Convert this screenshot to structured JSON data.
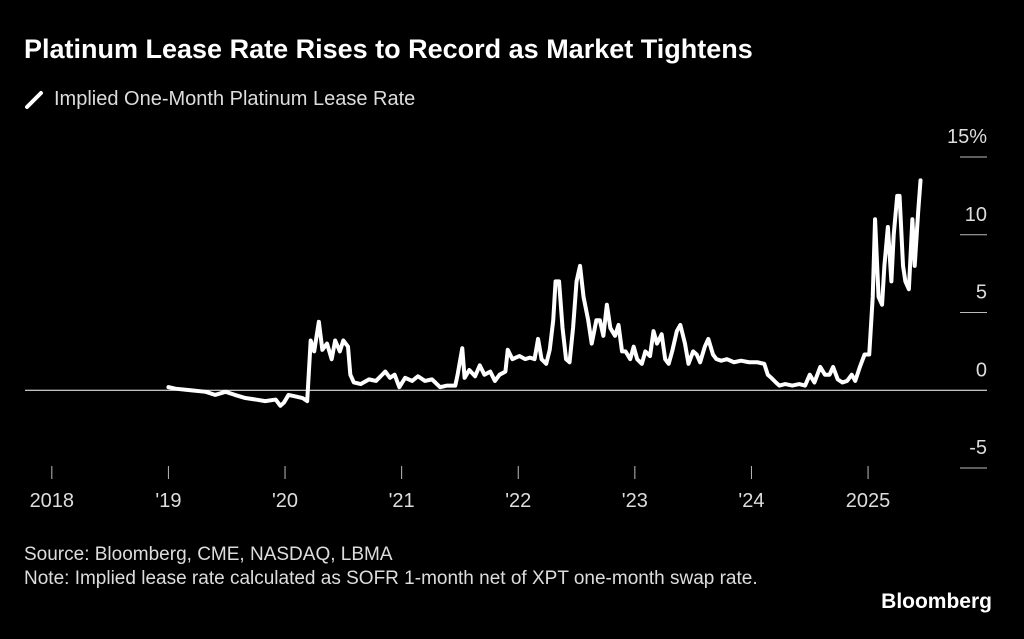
{
  "chart_data": {
    "type": "line",
    "title": "Platinum Lease Rate Rises to Record as Market Tightens",
    "source": "Source: Bloomberg, CME, NASDAQ, LBMA",
    "note": "Note: Implied lease rate calculated as SOFR 1-month net of XPT one-month swap rate.",
    "source_logo": "Bloomberg",
    "xlim": [
      2017.77,
      2026.02
    ],
    "xticks": [
      2018,
      {
        "value": 2019,
        "label": "'19"
      },
      {
        "value": 2020,
        "label": "'20"
      },
      {
        "value": 2021,
        "label": "'21"
      },
      {
        "value": 2022,
        "label": "'22"
      },
      {
        "value": 2023,
        "label": "'23"
      },
      {
        "value": 2024,
        "label": "'24"
      },
      2025
    ],
    "ylim": [
      -5,
      15
    ],
    "yticks": [
      -5,
      0,
      5,
      10,
      {
        "value": 15,
        "label": "15%"
      }
    ],
    "x": [
      2019.0,
      2019.06,
      2019.19,
      2019.32,
      2019.4,
      2019.49,
      2019.57,
      2019.66,
      2019.75,
      2019.83,
      2019.92,
      2019.96,
      2019.99,
      2020.03,
      2020.09,
      2020.15,
      2020.19,
      2020.22,
      2020.25,
      2020.29,
      2020.32,
      2020.36,
      2020.4,
      2020.43,
      2020.47,
      2020.5,
      2020.54,
      2020.56,
      2020.59,
      2020.65,
      2020.72,
      2020.78,
      2020.82,
      2020.86,
      2020.9,
      2020.94,
      2020.98,
      2021.03,
      2021.09,
      2021.14,
      2021.2,
      2021.26,
      2021.33,
      2021.39,
      2021.46,
      2021.48,
      2021.52,
      2021.54,
      2021.58,
      2021.63,
      2021.67,
      2021.71,
      2021.76,
      2021.8,
      2021.84,
      2021.89,
      2021.91,
      2021.95,
      2021.98,
      2022.01,
      2022.06,
      2022.1,
      2022.14,
      2022.17,
      2022.2,
      2022.24,
      2022.27,
      2022.3,
      2022.32,
      2022.35,
      2022.38,
      2022.41,
      2022.44,
      2022.47,
      2022.5,
      2022.53,
      2022.56,
      2022.6,
      2022.63,
      2022.67,
      2022.7,
      2022.73,
      2022.76,
      2022.79,
      2022.83,
      2022.86,
      2022.89,
      2022.92,
      2022.96,
      2022.99,
      2023.02,
      2023.06,
      2023.09,
      2023.13,
      2023.16,
      2023.19,
      2023.23,
      2023.26,
      2023.29,
      2023.32,
      2023.36,
      2023.39,
      2023.43,
      2023.46,
      2023.5,
      2023.53,
      2023.56,
      2023.6,
      2023.63,
      2023.67,
      2023.7,
      2023.74,
      2023.79,
      2023.85,
      2023.91,
      2023.98,
      2024.05,
      2024.11,
      2024.14,
      2024.17,
      2024.21,
      2024.24,
      2024.29,
      2024.35,
      2024.41,
      2024.46,
      2024.5,
      2024.54,
      2024.59,
      2024.63,
      2024.67,
      2024.7,
      2024.74,
      2024.78,
      2024.82,
      2024.86,
      2024.89,
      2024.93,
      2024.97,
      2025.01,
      2025.04,
      2025.06,
      2025.09,
      2025.12,
      2025.14,
      2025.17,
      2025.2,
      2025.22,
      2025.25,
      2025.27,
      2025.3,
      2025.32,
      2025.35,
      2025.38,
      2025.4,
      2025.43,
      2025.45
    ],
    "series": [
      {
        "name": "Implied One-Month Platinum Lease Rate",
        "color": "#ffffff",
        "values": [
          0.2,
          0.1,
          0.0,
          -0.1,
          -0.3,
          -0.1,
          -0.3,
          -0.5,
          -0.6,
          -0.7,
          -0.6,
          -1.0,
          -0.8,
          -0.3,
          -0.4,
          -0.5,
          -0.7,
          3.2,
          2.5,
          4.4,
          2.6,
          3.0,
          2.0,
          3.2,
          2.5,
          3.2,
          2.8,
          1.0,
          0.5,
          0.4,
          0.7,
          0.6,
          0.9,
          1.2,
          0.8,
          1.0,
          0.2,
          0.8,
          0.6,
          0.9,
          0.6,
          0.7,
          0.2,
          0.3,
          0.3,
          1.0,
          2.7,
          0.8,
          1.3,
          0.9,
          1.6,
          1.0,
          1.2,
          0.6,
          1.0,
          1.2,
          2.6,
          2.0,
          2.1,
          2.2,
          2.0,
          2.1,
          2.0,
          3.3,
          2.0,
          1.7,
          2.6,
          4.5,
          7.0,
          7.0,
          4.0,
          2.0,
          1.8,
          4.0,
          7.0,
          8.0,
          6.0,
          4.5,
          3.0,
          4.5,
          4.5,
          3.5,
          5.5,
          4.0,
          3.5,
          4.2,
          2.5,
          2.5,
          2.0,
          2.8,
          2.0,
          1.7,
          2.5,
          2.2,
          3.8,
          3.0,
          3.6,
          2.0,
          1.7,
          2.5,
          3.8,
          4.2,
          3.0,
          1.7,
          2.5,
          2.3,
          1.8,
          2.8,
          3.3,
          2.3,
          2.0,
          1.9,
          2.0,
          1.8,
          1.9,
          1.8,
          1.8,
          1.7,
          1.0,
          0.8,
          0.5,
          0.3,
          0.4,
          0.3,
          0.4,
          0.3,
          1.0,
          0.5,
          1.5,
          1.0,
          1.0,
          1.5,
          0.7,
          0.5,
          0.6,
          1.0,
          0.6,
          1.5,
          2.3,
          2.3,
          6.0,
          11.0,
          6.0,
          5.5,
          8.0,
          10.5,
          7.0,
          10.0,
          12.5,
          12.5,
          8.0,
          7.0,
          6.5,
          11.0,
          8.0,
          11.5,
          13.5
        ]
      }
    ]
  }
}
